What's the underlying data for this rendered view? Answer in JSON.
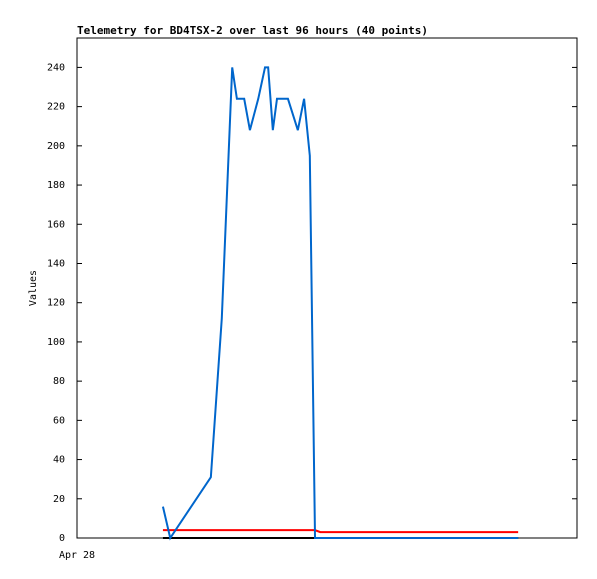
{
  "chart_data": {
    "type": "line",
    "title": "Telemetry for BD4TSX-2 over last 96 hours (40 points)",
    "y_label": "Values",
    "x": [
      16.5,
      17.9,
      25.7,
      27.8,
      29.8,
      30.7,
      32.1,
      33.2,
      34.8,
      36.1,
      36.7,
      37.6,
      38.4,
      39.6,
      40.5,
      42.4,
      43.6,
      44.7,
      45.7,
      46.7,
      48.6,
      50.5,
      52.4,
      54.3,
      56.2,
      58.1,
      60.0,
      61.9,
      63.8,
      65.7,
      67.6,
      69.5,
      71.4,
      73.3,
      75.2,
      77.1,
      79.0,
      80.9,
      82.8,
      84.7
    ],
    "series": [
      {
        "name": "Black",
        "color": "#000000",
        "values": [
          0,
          0,
          0,
          0,
          0,
          0,
          0,
          0,
          0,
          0,
          0,
          0,
          0,
          0,
          0,
          0,
          0,
          0,
          0,
          0,
          0,
          0,
          0,
          0,
          0,
          0,
          0,
          0,
          0,
          0,
          0,
          0,
          0,
          0,
          0,
          0,
          0,
          0,
          0,
          0
        ]
      },
      {
        "name": "Red",
        "color": "#ff0000",
        "values": [
          4,
          4,
          4,
          4,
          4,
          4,
          4,
          4,
          4,
          4,
          4,
          4,
          4,
          4,
          4,
          4,
          4,
          4,
          4,
          3,
          3,
          3,
          3,
          3,
          3,
          3,
          3,
          3,
          3,
          3,
          3,
          3,
          3,
          3,
          3,
          3,
          3,
          3,
          3,
          3
        ]
      },
      {
        "name": "Blue",
        "color": "#0066cc",
        "values": [
          16,
          0,
          31,
          112,
          240,
          224,
          224,
          208,
          224,
          240,
          240,
          208,
          224,
          224,
          224,
          208,
          224,
          195,
          0,
          0,
          0,
          0,
          0,
          0,
          0,
          0,
          0,
          0,
          0,
          0,
          0,
          0,
          0,
          0,
          0,
          0,
          0,
          0,
          0,
          0
        ]
      }
    ],
    "xlim": [
      0,
      96
    ],
    "xticks": [
      {
        "value": 0,
        "label": "Apr 28"
      }
    ],
    "ylim": [
      0,
      255
    ],
    "yticks": [
      0,
      20,
      40,
      60,
      80,
      100,
      120,
      140,
      160,
      180,
      200,
      220,
      240
    ]
  }
}
